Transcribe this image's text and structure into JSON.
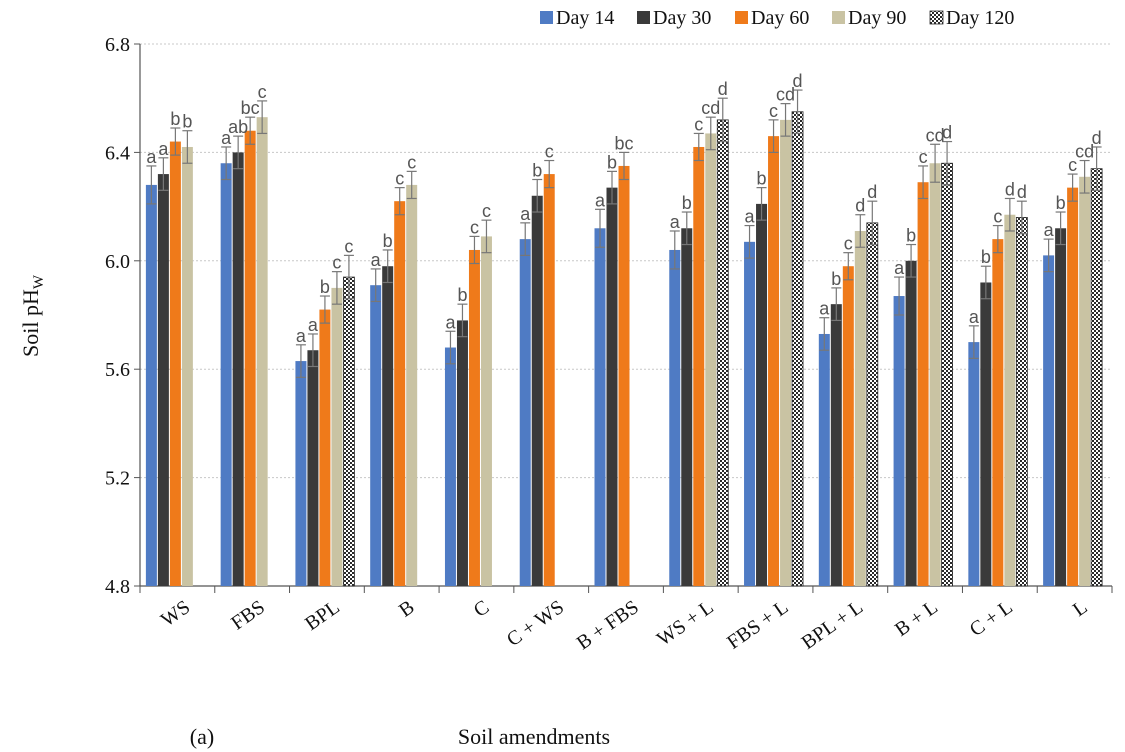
{
  "chart_data": {
    "type": "bar",
    "panel_label": "(a)",
    "xlabel": "Soil amendments",
    "ylabel_main": "Soil pH",
    "ylabel_sub": "W",
    "ylim": [
      4.8,
      6.8
    ],
    "yticks": [
      "4.8",
      "5.2",
      "5.6",
      "6.0",
      "6.4",
      "6.8"
    ],
    "grid": true,
    "legend_position": "top-right",
    "categories": [
      "WS",
      "FBS",
      "BPL",
      "B",
      "C",
      "C + WS",
      "B + FBS",
      "WS + L",
      "FBS + L",
      "BPL + L",
      "B + L",
      "C + L",
      "L"
    ],
    "series": [
      {
        "name": "Day 14",
        "color": "#4f7bc4",
        "pattern": "solid",
        "values": [
          6.28,
          6.36,
          5.63,
          5.91,
          5.68,
          6.08,
          6.12,
          6.04,
          6.07,
          5.73,
          5.87,
          5.7,
          6.02
        ],
        "errors": [
          0.07,
          0.06,
          0.06,
          0.06,
          0.06,
          0.06,
          0.07,
          0.07,
          0.06,
          0.06,
          0.07,
          0.06,
          0.06
        ],
        "letters": [
          "a",
          "a",
          "a",
          "a",
          "a",
          "a",
          "a",
          "a",
          "a",
          "a",
          "a",
          "a",
          "a"
        ]
      },
      {
        "name": "Day 30",
        "color": "#3a3a3a",
        "pattern": "solid",
        "values": [
          6.32,
          6.4,
          5.67,
          5.98,
          5.78,
          6.24,
          6.27,
          6.12,
          6.21,
          5.84,
          6.0,
          5.92,
          6.12
        ],
        "errors": [
          0.06,
          0.06,
          0.06,
          0.06,
          0.06,
          0.06,
          0.06,
          0.06,
          0.06,
          0.06,
          0.06,
          0.06,
          0.06
        ],
        "letters": [
          "a",
          "ab",
          "a",
          "b",
          "b",
          "b",
          "b",
          "b",
          "b",
          "b",
          "b",
          "b",
          "b"
        ]
      },
      {
        "name": "Day 60",
        "color": "#ef7a1a",
        "pattern": "solid",
        "values": [
          6.44,
          6.48,
          5.82,
          6.22,
          6.04,
          6.32,
          6.35,
          6.42,
          6.46,
          5.98,
          6.29,
          6.08,
          6.27
        ],
        "errors": [
          0.05,
          0.05,
          0.05,
          0.05,
          0.05,
          0.05,
          0.05,
          0.05,
          0.06,
          0.05,
          0.06,
          0.05,
          0.05
        ],
        "letters": [
          "b",
          "bc",
          "b",
          "c",
          "c",
          "c",
          "bc",
          "c",
          "c",
          "c",
          "c",
          "c",
          "c"
        ]
      },
      {
        "name": "Day 90",
        "color": "#c9c3a3",
        "pattern": "solid",
        "values": [
          6.42,
          6.53,
          5.9,
          6.28,
          6.09,
          null,
          null,
          6.47,
          6.52,
          6.11,
          6.36,
          6.17,
          6.31
        ],
        "errors": [
          0.06,
          0.06,
          0.06,
          0.05,
          0.06,
          0,
          0,
          0.06,
          0.06,
          0.06,
          0.07,
          0.06,
          0.06
        ],
        "letters": [
          "b",
          "c",
          "c",
          "c",
          "c",
          "",
          "",
          "cd",
          "cd",
          "d",
          "cd",
          "d",
          "cd"
        ]
      },
      {
        "name": "Day 120",
        "color": "#3a3a3a",
        "pattern": "checker",
        "values": [
          null,
          null,
          5.94,
          null,
          null,
          null,
          null,
          6.52,
          6.55,
          6.14,
          6.36,
          6.16,
          6.34
        ],
        "errors": [
          0,
          0,
          0.08,
          0,
          0,
          0,
          0,
          0.08,
          0.08,
          0.08,
          0.08,
          0.06,
          0.08
        ],
        "letters": [
          "",
          "",
          "c",
          "",
          "",
          "",
          "",
          "d",
          "d",
          "d",
          "d",
          "d",
          "d"
        ]
      }
    ]
  }
}
